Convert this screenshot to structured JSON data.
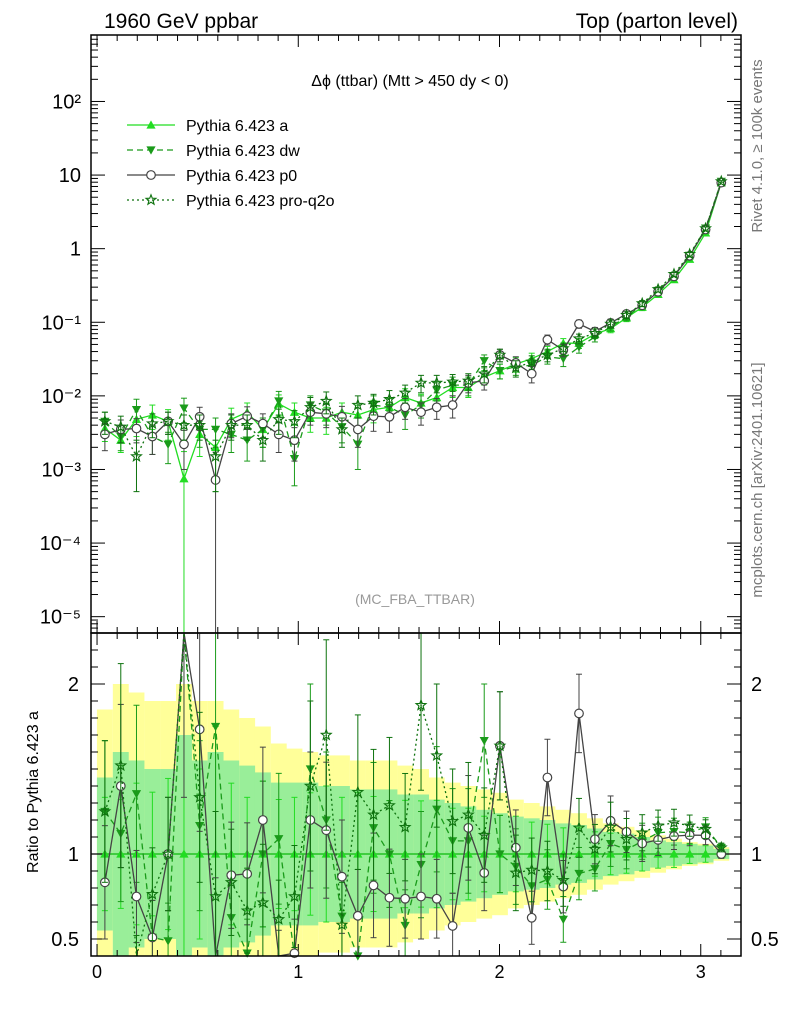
{
  "header": {
    "left": "1960 GeV ppbar",
    "right": "Top (parton level)"
  },
  "side_labels": {
    "rivet": "Rivet 4.1.0, ≥ 100k events",
    "mcplots": "mcplots.cern.ch [arXiv:2401.10621]"
  },
  "chart_data": {
    "type": "line",
    "title": "Δϕ (ttbar) (Mtt > 450 dy < 0)",
    "watermark": "(MC_FBA_TTBAR)",
    "xlabel": "",
    "ylabel": "",
    "ratio_ylabel": "Ratio to Pythia 6.423 a",
    "xlim": [
      -0.03,
      3.2
    ],
    "ylim": [
      6e-06,
      800
    ],
    "yscale": "log",
    "ratio_ylim": [
      0.4,
      2.3
    ],
    "x_ticks": [
      "0",
      "1",
      "2",
      "3"
    ],
    "y_ticks": [
      "10⁻⁵",
      "10⁻⁴",
      "10⁻³",
      "10⁻²",
      "10⁻¹",
      "1",
      "10",
      "10²"
    ],
    "ratio_ticks": [
      "0.5",
      "1",
      "2"
    ],
    "legend_position": "top-left",
    "x": [
      0.039,
      0.118,
      0.196,
      0.275,
      0.353,
      0.432,
      0.51,
      0.589,
      0.667,
      0.746,
      0.824,
      0.903,
      0.981,
      1.06,
      1.139,
      1.217,
      1.296,
      1.374,
      1.453,
      1.531,
      1.61,
      1.688,
      1.767,
      1.845,
      1.924,
      2.002,
      2.081,
      2.16,
      2.238,
      2.317,
      2.395,
      2.474,
      2.552,
      2.631,
      2.709,
      2.788,
      2.867,
      2.945,
      3.024,
      3.102
    ],
    "series": [
      {
        "name": "Pythia 6.423 a",
        "color": "#22dd22",
        "style": "solid",
        "marker": "triangle-up",
        "values": [
          0.0036,
          0.0025,
          0.0048,
          0.0055,
          0.0045,
          0.00075,
          0.003,
          0.002,
          0.0048,
          0.006,
          0.0035,
          0.0078,
          0.006,
          0.005,
          0.005,
          0.006,
          0.0055,
          0.0065,
          0.007,
          0.0095,
          0.008,
          0.0095,
          0.013,
          0.013,
          0.018,
          0.022,
          0.027,
          0.032,
          0.04,
          0.052,
          0.052,
          0.069,
          0.082,
          0.115,
          0.16,
          0.24,
          0.38,
          0.72,
          1.64,
          7.9
        ],
        "errors": [
          0.0012,
          0.0008,
          0.002,
          0.002,
          0.002,
          0.001,
          0.0015,
          0.0015,
          0.002,
          0.002,
          0.0015,
          0.0025,
          0.002,
          0.0018,
          0.002,
          0.002,
          0.002,
          0.0022,
          0.0022,
          0.003,
          0.0025,
          0.003,
          0.0035,
          0.0035,
          0.004,
          0.005,
          0.006,
          0.006,
          0.007,
          0.008,
          0.008,
          0.009,
          0.01,
          0.013,
          0.016,
          0.02,
          0.03,
          0.04,
          0.08,
          0.2
        ]
      },
      {
        "name": "Pythia 6.423 dw",
        "color": "#1a9b1a",
        "style": "dashed",
        "marker": "triangle-down",
        "values": [
          0.0045,
          0.0028,
          0.0065,
          0.0028,
          0.0022,
          0.0068,
          0.0035,
          0.0035,
          0.003,
          0.0025,
          0.0035,
          0.0085,
          0.0014,
          0.0075,
          0.006,
          0.0038,
          0.0022,
          0.0075,
          0.007,
          0.0055,
          0.0075,
          0.012,
          0.014,
          0.014,
          0.03,
          0.022,
          0.025,
          0.026,
          0.034,
          0.032,
          0.046,
          0.063,
          0.087,
          0.118,
          0.172,
          0.27,
          0.43,
          0.81,
          1.9,
          8.2
        ],
        "errors": [
          0.0015,
          0.001,
          0.0025,
          0.0012,
          0.001,
          0.0025,
          0.0015,
          0.0015,
          0.0013,
          0.0012,
          0.0015,
          0.003,
          0.0008,
          0.0025,
          0.002,
          0.0015,
          0.0012,
          0.0025,
          0.0022,
          0.002,
          0.0025,
          0.0035,
          0.004,
          0.004,
          0.006,
          0.005,
          0.006,
          0.006,
          0.007,
          0.007,
          0.008,
          0.009,
          0.011,
          0.013,
          0.017,
          0.022,
          0.03,
          0.045,
          0.09,
          0.2
        ]
      },
      {
        "name": "Pythia 6.423 p0",
        "color": "#444444",
        "style": "solid",
        "marker": "circle-open",
        "values": [
          0.003,
          0.0035,
          0.0036,
          0.0028,
          0.0045,
          0.0022,
          0.0052,
          0.00072,
          0.0042,
          0.0053,
          0.0042,
          0.003,
          0.0025,
          0.006,
          0.0057,
          0.0052,
          0.0035,
          0.0053,
          0.0052,
          0.007,
          0.006,
          0.007,
          0.0075,
          0.015,
          0.016,
          0.036,
          0.028,
          0.02,
          0.058,
          0.042,
          0.095,
          0.075,
          0.098,
          0.13,
          0.17,
          0.26,
          0.42,
          0.8,
          1.82,
          7.9
        ],
        "errors": [
          0.0012,
          0.0012,
          0.0013,
          0.0012,
          0.0015,
          0.0012,
          0.0018,
          0.001,
          0.0015,
          0.0018,
          0.0015,
          0.0013,
          0.0012,
          0.002,
          0.002,
          0.002,
          0.0015,
          0.002,
          0.002,
          0.0022,
          0.002,
          0.0022,
          0.0025,
          0.004,
          0.004,
          0.007,
          0.006,
          0.005,
          0.009,
          0.008,
          0.012,
          0.01,
          0.012,
          0.014,
          0.017,
          0.022,
          0.03,
          0.045,
          0.09,
          0.2
        ]
      },
      {
        "name": "Pythia 6.423 pro-q2o",
        "color": "#0e720e",
        "style": "dotted",
        "marker": "star-open",
        "values": [
          0.0045,
          0.0038,
          0.0015,
          0.0042,
          0.0045,
          0.004,
          0.004,
          0.0015,
          0.004,
          0.004,
          0.0025,
          0.0048,
          0.0045,
          0.007,
          0.0085,
          0.0035,
          0.0075,
          0.008,
          0.009,
          0.011,
          0.015,
          0.015,
          0.0155,
          0.016,
          0.02,
          0.036,
          0.024,
          0.029,
          0.036,
          0.044,
          0.06,
          0.071,
          0.095,
          0.125,
          0.18,
          0.28,
          0.45,
          0.84,
          1.88,
          8.2
        ],
        "errors": [
          0.0015,
          0.0015,
          0.001,
          0.0015,
          0.0015,
          0.0015,
          0.0015,
          0.001,
          0.0015,
          0.0015,
          0.0012,
          0.0018,
          0.0018,
          0.0025,
          0.0028,
          0.0015,
          0.0025,
          0.0025,
          0.0028,
          0.003,
          0.004,
          0.004,
          0.004,
          0.004,
          0.005,
          0.007,
          0.006,
          0.006,
          0.007,
          0.008,
          0.009,
          0.01,
          0.012,
          0.014,
          0.017,
          0.022,
          0.03,
          0.045,
          0.09,
          0.2
        ]
      }
    ],
    "ratio_band": {
      "reference": "Pythia 6.423 a",
      "inner_color": "#99ee99",
      "outer_color": "#ffff99",
      "inner_half_width": [
        0.45,
        0.6,
        0.55,
        0.5,
        0.5,
        0.7,
        0.55,
        0.6,
        0.55,
        0.52,
        0.48,
        0.42,
        0.42,
        0.42,
        0.4,
        0.4,
        0.38,
        0.38,
        0.38,
        0.35,
        0.35,
        0.32,
        0.3,
        0.28,
        0.26,
        0.24,
        0.22,
        0.21,
        0.2,
        0.18,
        0.17,
        0.15,
        0.13,
        0.12,
        0.1,
        0.08,
        0.07,
        0.06,
        0.05,
        0.03
      ],
      "outer_half_width": [
        0.85,
        1.0,
        0.95,
        0.9,
        0.9,
        1.0,
        0.9,
        0.9,
        0.85,
        0.8,
        0.75,
        0.65,
        0.62,
        0.6,
        0.58,
        0.58,
        0.55,
        0.55,
        0.55,
        0.52,
        0.5,
        0.45,
        0.42,
        0.4,
        0.38,
        0.36,
        0.32,
        0.3,
        0.28,
        0.26,
        0.24,
        0.21,
        0.18,
        0.16,
        0.14,
        0.11,
        0.09,
        0.07,
        0.06,
        0.04
      ]
    }
  }
}
